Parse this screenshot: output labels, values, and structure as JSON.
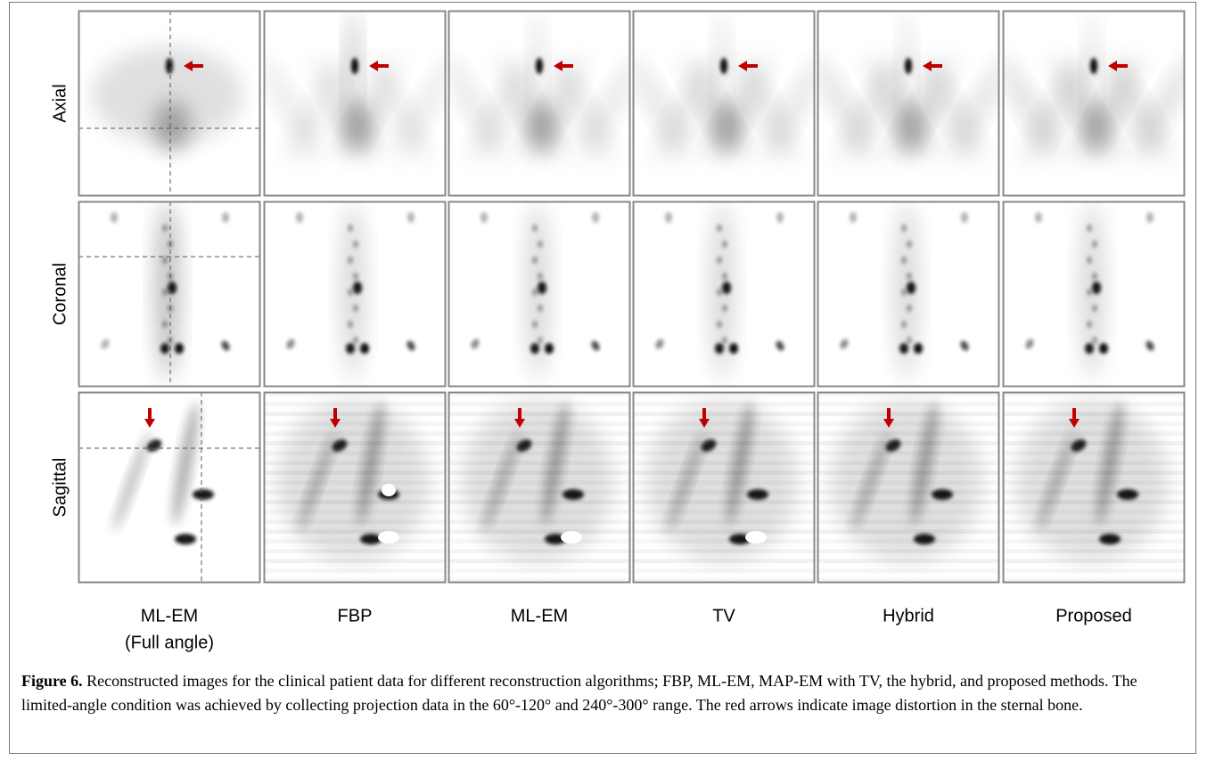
{
  "rows": [
    "Axial",
    "Coronal",
    "Sagittal"
  ],
  "columns": [
    {
      "lines": [
        "ML-EM",
        "(Full angle)"
      ]
    },
    {
      "lines": [
        "FBP"
      ]
    },
    {
      "lines": [
        "ML-EM"
      ]
    },
    {
      "lines": [
        "TV"
      ]
    },
    {
      "lines": [
        "Hybrid"
      ]
    },
    {
      "lines": [
        "Proposed"
      ]
    }
  ],
  "caption": {
    "label": "Figure 6.",
    "text": "Reconstructed images for the clinical patient data for different reconstruction algorithms; FBP, ML-EM, MAP-EM with TV, the hybrid, and proposed methods. The limited-angle condition was achieved by collecting projection data in the 60°-120° and 240°-300° range. The red arrows indicate image distortion in the sternal bone."
  }
}
